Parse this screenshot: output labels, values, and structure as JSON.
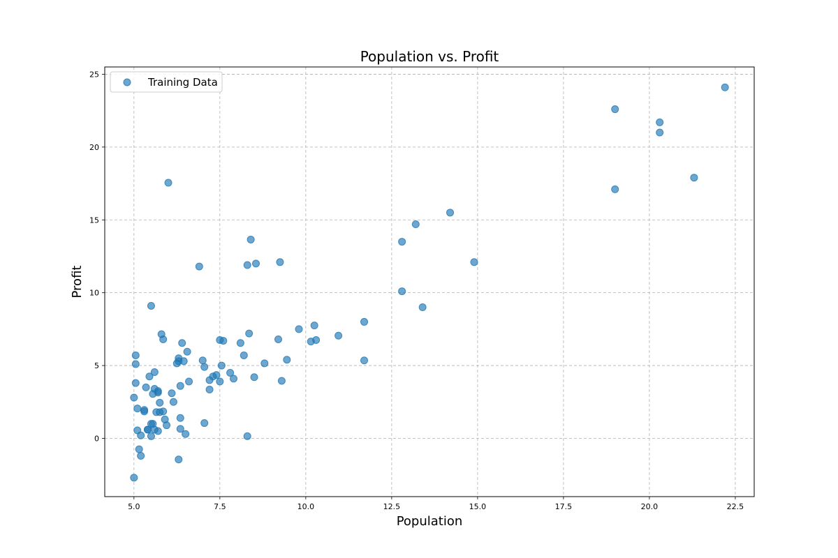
{
  "chart_data": {
    "type": "scatter",
    "title": "Population vs. Profit",
    "xlabel": "Population",
    "ylabel": "Profit",
    "xlim": [
      4.15,
      23.05
    ],
    "ylim": [
      -4.0,
      25.5
    ],
    "xticks": [
      5.0,
      7.5,
      10.0,
      12.5,
      15.0,
      17.5,
      20.0,
      22.5
    ],
    "xtick_labels": [
      "5.0",
      "7.5",
      "10.0",
      "12.5",
      "15.0",
      "17.5",
      "20.0",
      "22.5"
    ],
    "yticks": [
      0,
      5,
      10,
      15,
      20,
      25
    ],
    "ytick_labels": [
      "0",
      "5",
      "10",
      "15",
      "20",
      "25"
    ],
    "grid": true,
    "legend_position": "top-left",
    "marker_color": "#1f77b4",
    "series": [
      {
        "name": "Training Data",
        "x": [
          22.2,
          19.0,
          20.3,
          20.3,
          21.3,
          19.0,
          14.2,
          13.2,
          12.8,
          12.8,
          14.9,
          13.4,
          11.7,
          11.7,
          10.95,
          10.3,
          10.25,
          10.15,
          9.8,
          9.45,
          9.3,
          9.25,
          9.2,
          8.8,
          8.55,
          8.5,
          8.4,
          8.35,
          8.3,
          8.3,
          8.2,
          8.1,
          7.9,
          7.8,
          7.6,
          7.55,
          7.5,
          7.5,
          7.4,
          7.3,
          7.2,
          7.2,
          7.05,
          7.05,
          7.0,
          6.9,
          6.6,
          6.55,
          6.5,
          6.45,
          6.4,
          6.35,
          6.35,
          6.35,
          6.3,
          6.3,
          6.3,
          6.25,
          6.15,
          6.1,
          6.0,
          5.95,
          5.9,
          5.85,
          5.85,
          5.8,
          5.75,
          5.75,
          5.7,
          5.7,
          5.7,
          5.65,
          5.6,
          5.6,
          5.6,
          5.55,
          5.55,
          5.5,
          5.5,
          5.5,
          5.45,
          5.4,
          5.4,
          5.35,
          5.3,
          5.3,
          5.2,
          5.2,
          5.15,
          5.1,
          5.1,
          5.05,
          5.05,
          5.05,
          5.0,
          5.0
        ],
        "y": [
          24.1,
          22.6,
          21.7,
          21.0,
          17.9,
          17.1,
          15.5,
          14.7,
          13.5,
          10.1,
          12.1,
          9.0,
          8.0,
          5.35,
          7.05,
          6.75,
          7.75,
          6.65,
          7.5,
          5.4,
          3.95,
          12.1,
          6.8,
          5.15,
          12.0,
          4.2,
          13.65,
          7.2,
          11.9,
          0.15,
          5.7,
          6.55,
          4.1,
          4.5,
          6.7,
          5.0,
          6.75,
          3.9,
          4.35,
          4.25,
          4.0,
          3.35,
          4.9,
          1.05,
          5.35,
          11.8,
          3.9,
          5.95,
          0.3,
          5.3,
          6.55,
          3.6,
          0.65,
          1.4,
          -1.45,
          5.5,
          5.3,
          5.15,
          2.5,
          3.1,
          17.55,
          0.9,
          1.3,
          1.85,
          6.8,
          7.15,
          2.45,
          1.8,
          0.5,
          3.15,
          3.25,
          1.8,
          0.6,
          4.55,
          3.4,
          1.0,
          3.05,
          1.0,
          0.15,
          9.1,
          4.25,
          0.6,
          0.6,
          3.5,
          1.85,
          1.95,
          -1.2,
          0.2,
          -0.75,
          0.55,
          2.05,
          5.7,
          5.1,
          3.8,
          2.8,
          -2.7
        ]
      }
    ]
  }
}
